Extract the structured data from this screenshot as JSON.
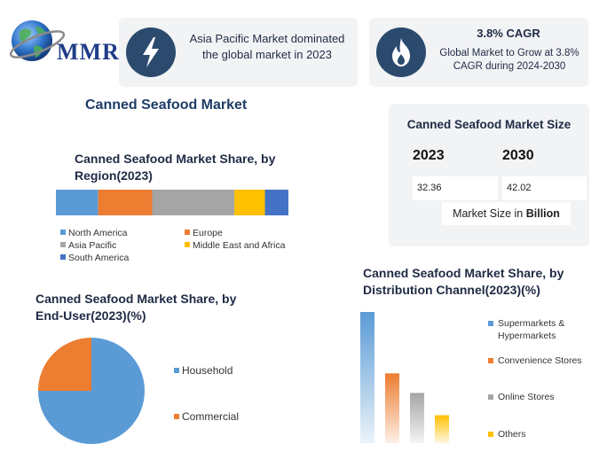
{
  "brand": {
    "logo_text": "MMR"
  },
  "highlights": [
    {
      "icon": "lightning-icon",
      "text": "Asia Pacific Market dominated the global market in  2023"
    },
    {
      "icon": "flame-icon",
      "title": "3.8% CAGR",
      "text": "Global Market to Grow at 3.8% CAGR during 2024-2030"
    }
  ],
  "main_title": "Canned Seafood Market",
  "market_size": {
    "title": "Canned Seafood Market Size",
    "years": [
      "2023",
      "2030"
    ],
    "values": [
      "32.36",
      "42.02"
    ],
    "caption_prefix": "Market Size in ",
    "caption_unit": "Billion"
  },
  "colors": {
    "blue": "#5b9bd5",
    "orange": "#ed7d31",
    "gray": "#a5a5a5",
    "yellow": "#ffc000",
    "dark_blue": "#4472c4",
    "navy": "#2b4a6e"
  },
  "chart_data": [
    {
      "type": "bar",
      "stacked": true,
      "orientation": "horizontal",
      "title": "Canned Seafood Market Share, by Region(2023)",
      "categories": [
        "North America",
        "Europe",
        "Asia Pacific",
        "Middle East and Africa",
        "South America"
      ],
      "values": [
        18,
        23,
        35,
        13,
        10
      ],
      "colors": [
        "#5b9bd5",
        "#ed7d31",
        "#a5a5a5",
        "#ffc000",
        "#4472c4"
      ],
      "legend": "bottom"
    },
    {
      "type": "pie",
      "title": "Canned Seafood Market Share, by End-User(2023)(%)",
      "categories": [
        "Household",
        "Commercial"
      ],
      "values": [
        75,
        25
      ],
      "colors": [
        "#5b9bd5",
        "#ed7d31"
      ],
      "legend": "right"
    },
    {
      "type": "bar",
      "title": "Canned Seafood Market Share, by Distribution Channel(2023)(%)",
      "categories": [
        "Supermarkets & Hypermarkets",
        "Convenience Stores",
        "Online Stores",
        "Others"
      ],
      "values": [
        47,
        25,
        18,
        10
      ],
      "colors": [
        "#5b9bd5",
        "#ed7d31",
        "#a5a5a5",
        "#ffc000"
      ],
      "ylim": [
        0,
        47
      ],
      "legend": "right"
    }
  ]
}
